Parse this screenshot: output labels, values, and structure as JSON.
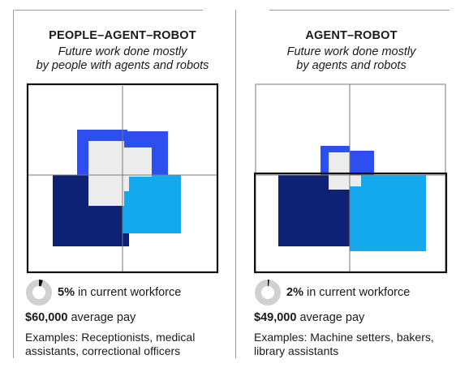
{
  "panels": [
    {
      "title": "PEOPLE–AGENT–ROBOT",
      "subtitle_line1": "Future work done mostly",
      "subtitle_line2": "by people with agents and robots",
      "percent": "5%",
      "percent_text": " in current workforce",
      "percent_value": 0.05,
      "pay_amount": "$60,000",
      "pay_text": " average pay",
      "examples": "Examples: Receptionists, medical assistants, correctional officers"
    },
    {
      "title": "AGENT–ROBOT",
      "subtitle_line1": "Future work done mostly",
      "subtitle_line2": "by agents and robots",
      "percent": "2%",
      "percent_text": " in current workforce",
      "percent_value": 0.02,
      "pay_amount": "$49,000",
      "pay_text": " average pay",
      "examples": "Examples: Machine setters, bakers, library assistants"
    }
  ],
  "colors": {
    "people": "#0d2175",
    "agent": "#2d4ff0",
    "robot": "#14a8ee",
    "overlap": "#ececec",
    "outline": "#111111",
    "grid": "#7a7a7a",
    "donut_track": "#d0d0d0",
    "donut_fill": "#111111"
  }
}
